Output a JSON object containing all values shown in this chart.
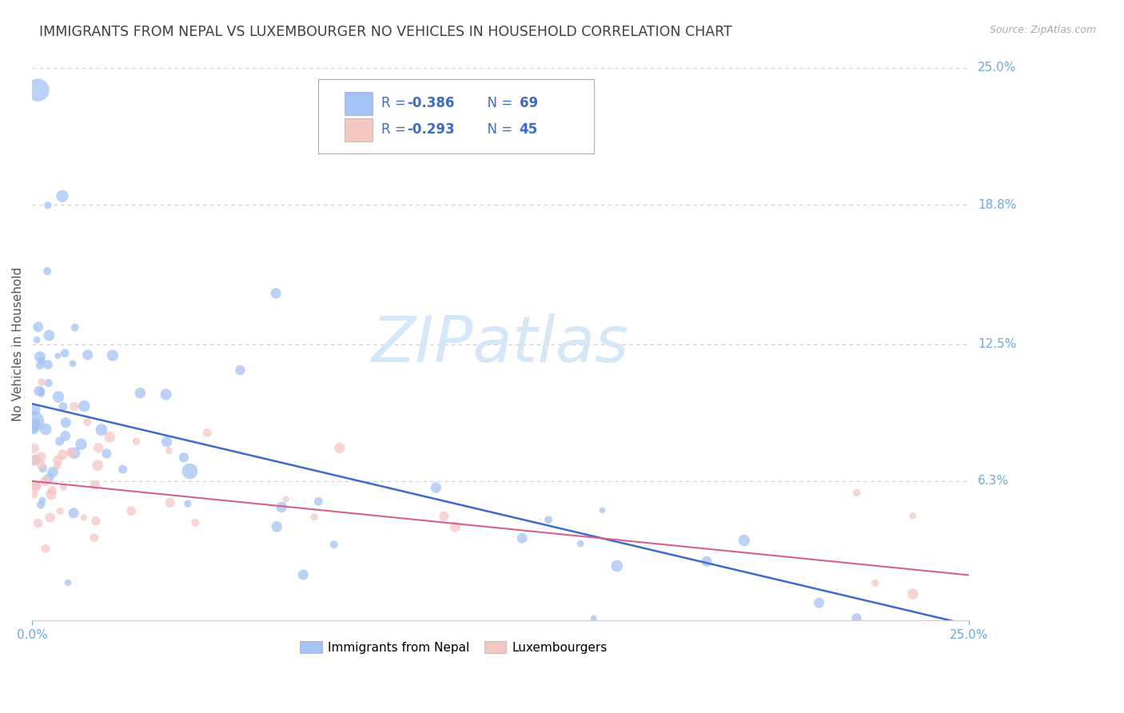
{
  "title": "IMMIGRANTS FROM NEPAL VS LUXEMBOURGER NO VEHICLES IN HOUSEHOLD CORRELATION CHART",
  "source": "Source: ZipAtlas.com",
  "ylabel": "No Vehicles in Household",
  "y_ticks_right": [
    "25.0%",
    "18.8%",
    "12.5%",
    "6.3%"
  ],
  "y_ticks_right_vals": [
    0.25,
    0.188,
    0.125,
    0.063
  ],
  "xlim": [
    0.0,
    0.25
  ],
  "ylim": [
    0.0,
    0.25
  ],
  "legend_nepal_R": "-0.386",
  "legend_nepal_N": "69",
  "legend_lux_R": "-0.293",
  "legend_lux_N": "45",
  "nepal_color": "#a4c2f4",
  "lux_color": "#f4c7c3",
  "nepal_line_color": "#3d6bca",
  "lux_line_color": "#d5618a",
  "legend_text_color": "#3d6bca",
  "watermark_color": "#d6e8f7",
  "grid_color": "#cccccc",
  "background_color": "#ffffff",
  "title_color": "#404040",
  "axis_tick_color": "#6fa8dc",
  "ylabel_color": "#555555",
  "source_color": "#aaaaaa",
  "nepal_seed": 42,
  "lux_seed": 99
}
